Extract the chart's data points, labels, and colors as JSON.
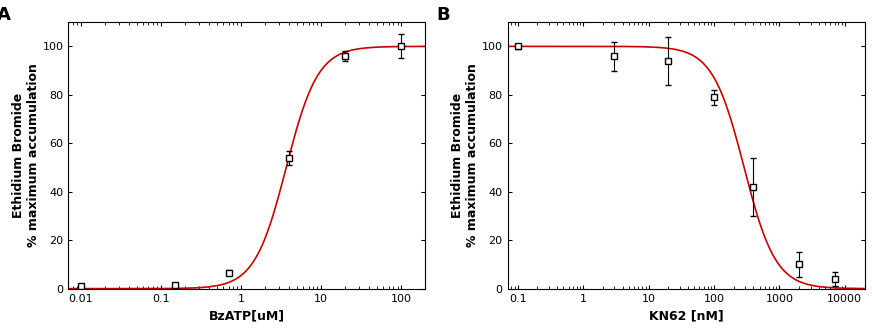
{
  "panel_A": {
    "label": "A",
    "xlabel": "BzATP[uM]",
    "ylabel": "Ethidium Bromide\n% maximum accumulation",
    "xlim": [
      0.007,
      200
    ],
    "ylim": [
      0,
      110
    ],
    "xticks": [
      0.01,
      0.1,
      1,
      10,
      100
    ],
    "xtick_labels": [
      "0.01",
      "0.1",
      "1",
      "10",
      "100"
    ],
    "yticks": [
      0,
      20,
      40,
      60,
      80,
      100
    ],
    "data_x": [
      0.01,
      0.15,
      0.7,
      4.0,
      20,
      100
    ],
    "data_y": [
      1.0,
      1.5,
      6.5,
      54.0,
      96.0,
      100.0
    ],
    "data_yerr": [
      0.3,
      0.4,
      1.0,
      3.0,
      2.0,
      5.0
    ],
    "EC50": 3.67,
    "hill": 2.2,
    "curve_color": "#cc0000",
    "marker_color": "black",
    "marker_face": "white"
  },
  "panel_B": {
    "label": "B",
    "xlabel": "KN62 [nM]",
    "ylabel": "Ethidium Bromide\n% maximum accumulation",
    "xlim": [
      0.07,
      20000
    ],
    "ylim": [
      0,
      110
    ],
    "xticks": [
      0.1,
      1,
      10,
      100,
      1000,
      10000
    ],
    "xtick_labels": [
      "0.1",
      "1",
      "10",
      "100",
      "1000",
      "10000"
    ],
    "yticks": [
      0,
      20,
      40,
      60,
      80,
      100
    ],
    "data_x": [
      0.1,
      3,
      20,
      100,
      400,
      2000,
      7000
    ],
    "data_y": [
      100.0,
      96.0,
      94.0,
      79.0,
      42.0,
      10.0,
      4.0
    ],
    "data_yerr": [
      1.0,
      6.0,
      10.0,
      3.0,
      12.0,
      5.0,
      3.0
    ],
    "IC50": 289,
    "hill": 1.8,
    "curve_color": "#cc0000",
    "marker_color": "black",
    "marker_face": "white"
  },
  "fig_bgcolor": "#ffffff",
  "tick_fontsize": 8,
  "axis_label_fontsize": 9,
  "panel_label_fontsize": 13
}
